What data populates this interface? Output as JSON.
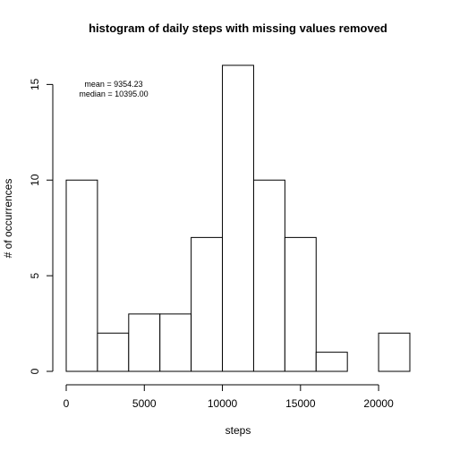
{
  "chart_data": {
    "type": "bar",
    "title": "histogram of daily steps with missing values removed",
    "xlabel": "steps",
    "ylabel": "# of occurrences",
    "bins": [
      {
        "x0": 0,
        "x1": 2000,
        "count": 10
      },
      {
        "x0": 2000,
        "x1": 4000,
        "count": 2
      },
      {
        "x0": 4000,
        "x1": 6000,
        "count": 3
      },
      {
        "x0": 6000,
        "x1": 8000,
        "count": 3
      },
      {
        "x0": 8000,
        "x1": 10000,
        "count": 7
      },
      {
        "x0": 10000,
        "x1": 12000,
        "count": 16
      },
      {
        "x0": 12000,
        "x1": 14000,
        "count": 10
      },
      {
        "x0": 14000,
        "x1": 16000,
        "count": 7
      },
      {
        "x0": 16000,
        "x1": 18000,
        "count": 1
      },
      {
        "x0": 18000,
        "x1": 20000,
        "count": 0
      },
      {
        "x0": 20000,
        "x1": 22000,
        "count": 2
      }
    ],
    "xlim": [
      0,
      22000
    ],
    "ylim": [
      0,
      16
    ],
    "xticks": [
      0,
      5000,
      10000,
      15000,
      20000
    ],
    "xtick_labels": [
      "0",
      "5000",
      "10000",
      "15000",
      "20000"
    ],
    "yticks": [
      0,
      5,
      10,
      15
    ],
    "ytick_labels": [
      "0",
      "5",
      "10",
      "15"
    ],
    "grid": false,
    "annotations": [
      "mean =  9354.23",
      "median = 10395.00"
    ]
  }
}
